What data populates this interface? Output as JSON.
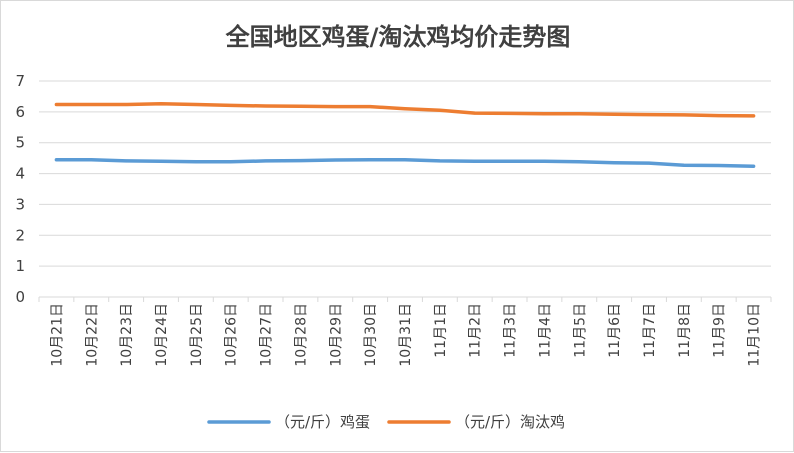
{
  "chart_data": {
    "type": "line",
    "title": "全国地区鸡蛋/淘汰鸡均价走势图",
    "categories": [
      "10月21日",
      "10月22日",
      "10月23日",
      "10月24日",
      "10月25日",
      "10月26日",
      "10月27日",
      "10月28日",
      "10月29日",
      "10月30日",
      "10月31日",
      "11月1日",
      "11月2日",
      "11月3日",
      "11月4日",
      "11月5日",
      "11月6日",
      "11月7日",
      "11月8日",
      "11月9日",
      "11月10日"
    ],
    "ylim": [
      0,
      7
    ],
    "yticks": [
      "0",
      "1",
      "2",
      "3",
      "4",
      "5",
      "6",
      "7"
    ],
    "grid": true,
    "legend_position": "bottom",
    "series": [
      {
        "name": "（元/斤）鸡蛋",
        "color": "#5b9bd5",
        "values": [
          4.45,
          4.45,
          4.41,
          4.4,
          4.38,
          4.38,
          4.41,
          4.42,
          4.44,
          4.45,
          4.45,
          4.41,
          4.4,
          4.4,
          4.4,
          4.38,
          4.35,
          4.34,
          4.27,
          4.26,
          4.24
        ]
      },
      {
        "name": "（元/斤）淘汰鸡",
        "color": "#ed7d31",
        "values": [
          6.24,
          6.24,
          6.24,
          6.26,
          6.24,
          6.21,
          6.19,
          6.18,
          6.17,
          6.17,
          6.1,
          6.05,
          5.96,
          5.95,
          5.94,
          5.94,
          5.92,
          5.91,
          5.9,
          5.88,
          5.87
        ]
      }
    ]
  }
}
